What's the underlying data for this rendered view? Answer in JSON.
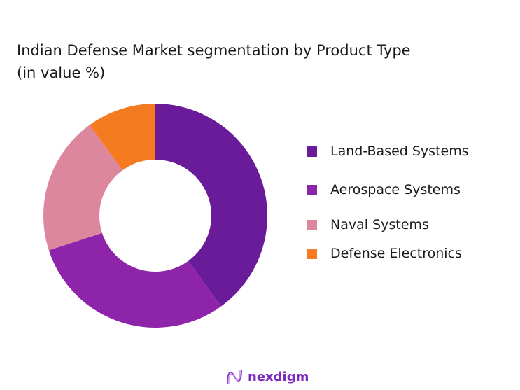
{
  "chart_data": {
    "type": "pie",
    "donut": true,
    "title_lines": [
      "Indian Defense Market segmentation by Product Type",
      "(in value %)"
    ],
    "categories": [
      "Land-Based Systems",
      "Aerospace Systems",
      "Naval Systems",
      "Defense Electronics"
    ],
    "values": [
      40,
      30,
      20,
      10
    ],
    "colors": [
      "#6a1b9a",
      "#8e24aa",
      "#dd879e",
      "#f47b20"
    ],
    "legend_position": "right"
  },
  "logo": {
    "text": "nexdigm"
  }
}
